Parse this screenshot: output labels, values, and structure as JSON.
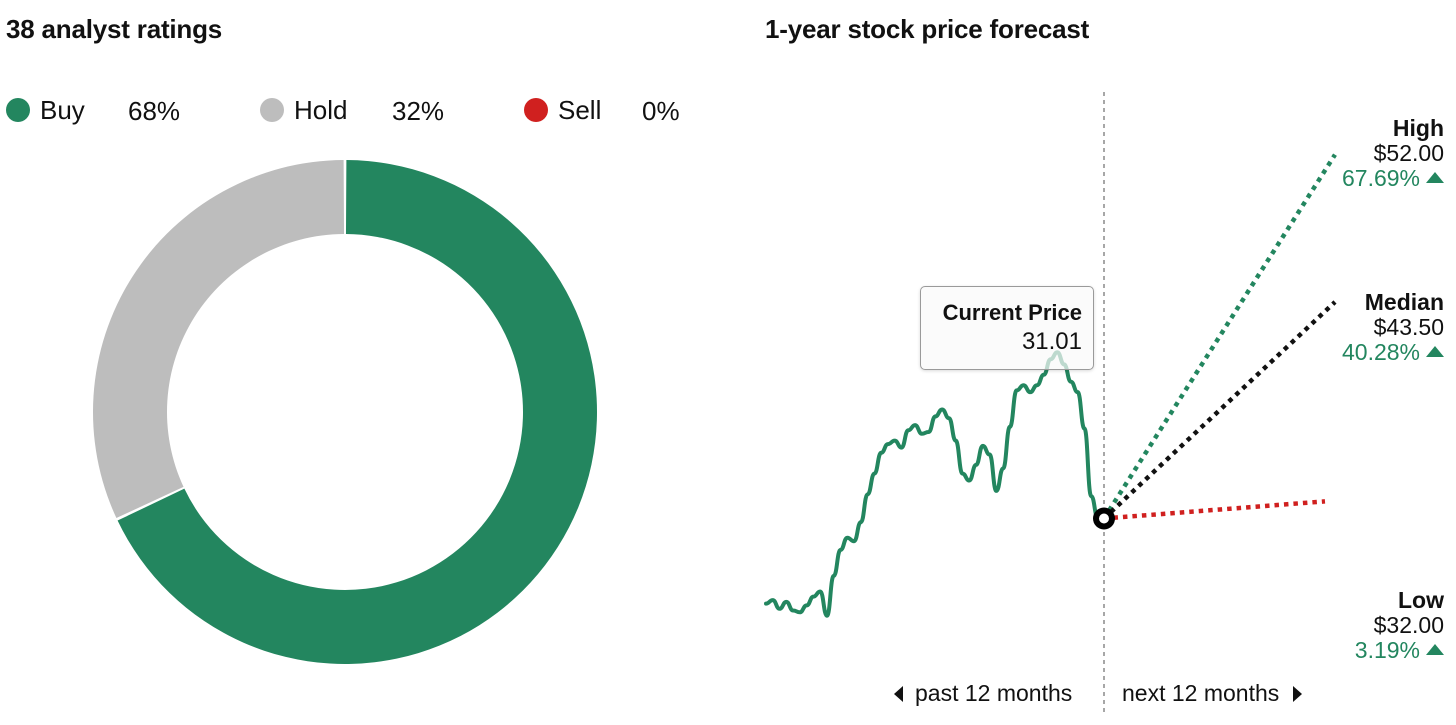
{
  "ratings": {
    "title": "38 analyst ratings",
    "legend": [
      {
        "label": "Buy",
        "percent": "68%",
        "color": "#23865f"
      },
      {
        "label": "Hold",
        "percent": "32%",
        "color": "#bdbdbd"
      },
      {
        "label": "Sell",
        "percent": "0%",
        "color": "#d0201f"
      }
    ]
  },
  "forecast": {
    "title": "1-year stock price forecast",
    "current_label": "Current Price",
    "current_value": "31.01",
    "targets": [
      {
        "name": "High",
        "price": "$52.00",
        "change": "67.69%",
        "color": "#23865f"
      },
      {
        "name": "Median",
        "price": "$43.50",
        "change": "40.28%",
        "color": "#111111"
      },
      {
        "name": "Low",
        "price": "$32.00",
        "change": "3.19%",
        "color": "#d0201f"
      }
    ],
    "past_label": "past 12 months",
    "next_label": "next 12 months"
  },
  "chart_data": [
    {
      "type": "pie",
      "title": "38 analyst ratings",
      "categories": [
        "Buy",
        "Hold",
        "Sell"
      ],
      "values": [
        68,
        32,
        0
      ],
      "unit": "%",
      "colors": [
        "#23865f",
        "#bdbdbd",
        "#d0201f"
      ],
      "donut": true,
      "legend": "top"
    },
    {
      "type": "line",
      "title": "1-year stock price forecast",
      "past_prices": [
        26.1,
        26.3,
        25.8,
        26.2,
        25.7,
        25.6,
        26.0,
        26.5,
        26.8,
        25.4,
        27.7,
        29.2,
        29.9,
        29.7,
        30.8,
        32.4,
        33.6,
        34.8,
        35.3,
        35.5,
        35.1,
        36.1,
        36.4,
        35.9,
        36.0,
        36.9,
        37.3,
        36.8,
        35.5,
        33.6,
        33.2,
        34.1,
        35.2,
        34.7,
        32.6,
        33.9,
        36.3,
        38.4,
        38.7,
        38.3,
        38.7,
        39.3,
        40.2,
        40.6,
        39.9,
        38.9,
        38.3,
        36.2,
        32.3,
        31.01
      ],
      "current_price": 31.01,
      "forecast": [
        {
          "name": "High",
          "value": 52.0,
          "change_pct": 67.69
        },
        {
          "name": "Median",
          "value": 43.5,
          "change_pct": 40.28
        },
        {
          "name": "Low",
          "value": 32.0,
          "change_pct": 3.19
        }
      ],
      "x_periods": [
        "past 12 months",
        "next 12 months"
      ],
      "ylim": [
        24,
        54
      ]
    }
  ]
}
